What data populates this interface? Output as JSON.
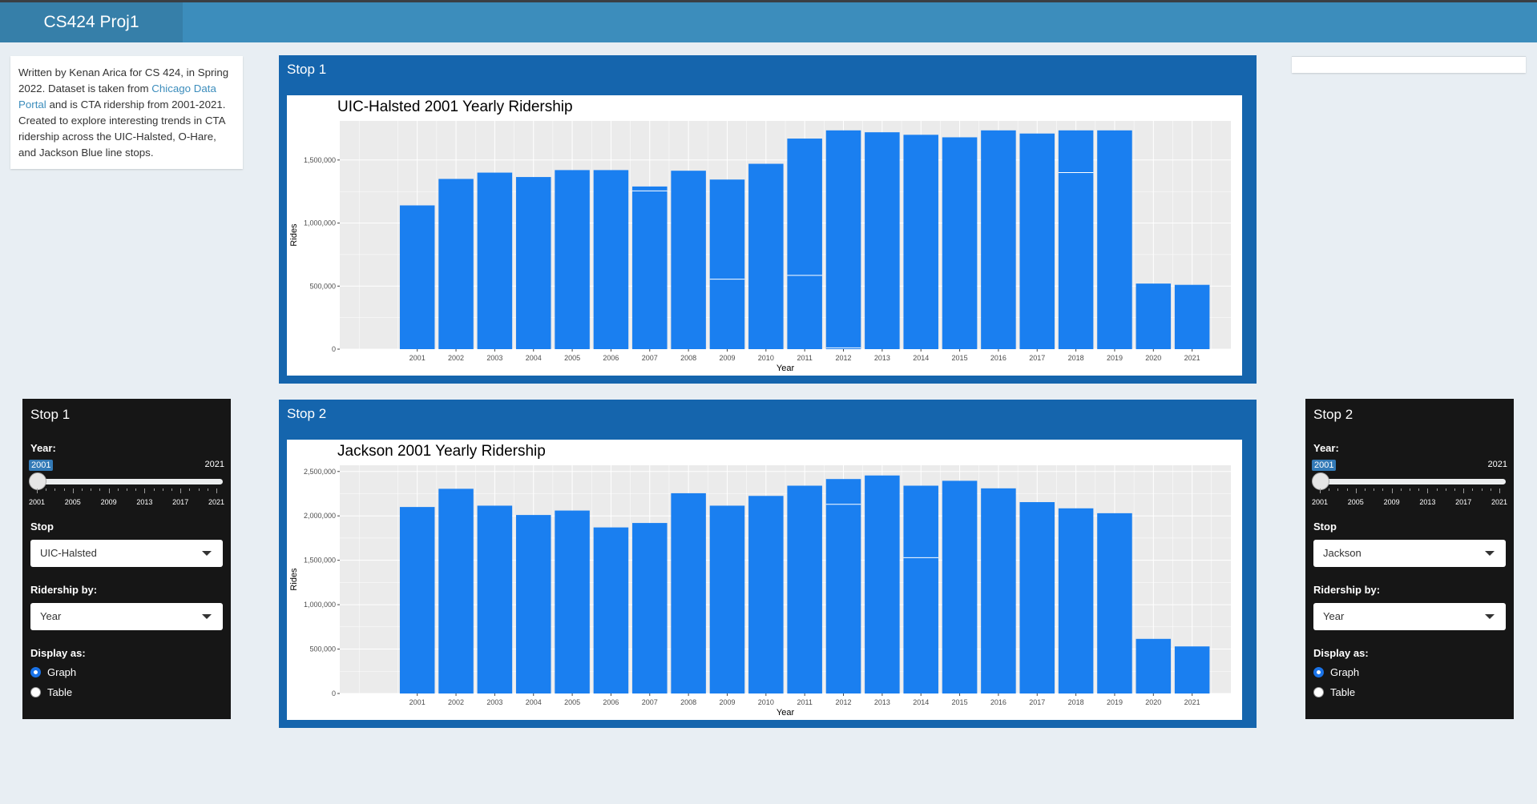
{
  "navbar": {
    "brand": "CS424 Proj1"
  },
  "info": {
    "text_before": "Written by Kenan Arica for CS 424, in Spring 2022. Dataset is taken from ",
    "link_text": "Chicago Data Portal",
    "text_after": " and is CTA ridership from 2001-2021. Created to explore interesting trends in CTA ridership across the UIC-Halsted, O-Hare, and Jackson Blue line stops."
  },
  "panels": [
    {
      "title": "Stop 1"
    },
    {
      "title": "Stop 2"
    }
  ],
  "controls": [
    {
      "title": "Stop 1",
      "year_label": "Year:",
      "year_value": "2001",
      "year_min": "2001",
      "year_max": "2021",
      "year_ticks": [
        "2001",
        "2005",
        "2009",
        "2013",
        "2017",
        "2021"
      ],
      "stop_label": "Stop",
      "stop_value": "UIC-Halsted",
      "ridership_label": "Ridership by:",
      "ridership_value": "Year",
      "display_label": "Display as:",
      "display_options": [
        "Graph",
        "Table"
      ],
      "display_selected": "Graph"
    },
    {
      "title": "Stop 2",
      "year_label": "Year:",
      "year_value": "2001",
      "year_min": "2001",
      "year_max": "2021",
      "year_ticks": [
        "2001",
        "2005",
        "2009",
        "2013",
        "2017",
        "2021"
      ],
      "stop_label": "Stop",
      "stop_value": "Jackson",
      "ridership_label": "Ridership by:",
      "ridership_value": "Year",
      "display_label": "Display as:",
      "display_options": [
        "Graph",
        "Table"
      ],
      "display_selected": "Graph"
    }
  ],
  "colors": {
    "bar": "#1a7ff0",
    "panel": "#1565ad",
    "navbar": "#3c8dbc",
    "plot_bg": "#ebebeb"
  },
  "chart_data": [
    {
      "type": "bar",
      "title": "UIC-Halsted 2001 Yearly Ridership",
      "xlabel": "Year",
      "ylabel": "Rides",
      "categories": [
        "2001",
        "2002",
        "2003",
        "2004",
        "2005",
        "2006",
        "2007",
        "2008",
        "2009",
        "2010",
        "2011",
        "2012",
        "2013",
        "2014",
        "2015",
        "2016",
        "2017",
        "2018",
        "2019",
        "2020",
        "2021"
      ],
      "values": [
        1140000,
        1350000,
        1400000,
        1365000,
        1420000,
        1420000,
        1290000,
        1415000,
        1345000,
        1470000,
        1670000,
        1735000,
        1720000,
        1700000,
        1680000,
        1735000,
        1710000,
        1735000,
        1735000,
        520000,
        510000
      ],
      "segment_lines": [
        null,
        null,
        null,
        null,
        null,
        null,
        1255000,
        null,
        555000,
        null,
        585000,
        10000,
        null,
        null,
        null,
        null,
        null,
        1400000,
        null,
        null,
        null
      ],
      "yticks": [
        0,
        500000,
        1000000,
        1500000
      ],
      "ytick_labels": [
        "0",
        "500,000",
        "1,000,000",
        "1,500,000"
      ],
      "ylim": [
        0,
        1810000
      ],
      "grid": true
    },
    {
      "type": "bar",
      "title": "Jackson 2001 Yearly Ridership",
      "xlabel": "Year",
      "ylabel": "Rides",
      "categories": [
        "2001",
        "2002",
        "2003",
        "2004",
        "2005",
        "2006",
        "2007",
        "2008",
        "2009",
        "2010",
        "2011",
        "2012",
        "2013",
        "2014",
        "2015",
        "2016",
        "2017",
        "2018",
        "2019",
        "2020",
        "2021"
      ],
      "values": [
        2100000,
        2305000,
        2115000,
        2010000,
        2060000,
        1870000,
        1920000,
        2255000,
        2115000,
        2225000,
        2340000,
        2415000,
        2455000,
        2340000,
        2395000,
        2310000,
        2155000,
        2085000,
        2030000,
        615000,
        530000
      ],
      "segment_lines": [
        null,
        null,
        null,
        null,
        null,
        null,
        null,
        null,
        null,
        null,
        null,
        2130000,
        null,
        1530000,
        null,
        null,
        null,
        null,
        null,
        null,
        null
      ],
      "yticks": [
        0,
        500000,
        1000000,
        1500000,
        2000000,
        2500000
      ],
      "ytick_labels": [
        "0",
        "500,000",
        "1,000,000",
        "1,500,000",
        "2,000,000",
        "2,500,000"
      ],
      "ylim": [
        0,
        2570000
      ],
      "grid": true
    }
  ]
}
